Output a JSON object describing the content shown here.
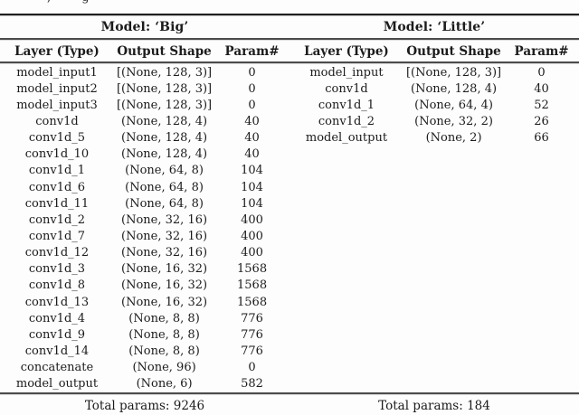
{
  "caption_fragment": ", g",
  "colors": {
    "background": "#fdfdfd",
    "text": "#1b1b1b",
    "rule_dark": "#1f1f1f",
    "rule_mid": "#4c4c4c"
  },
  "models": [
    {
      "title": "Model: ‘Big’",
      "columns": [
        "Layer (Type)",
        "Output Shape",
        "Param#"
      ],
      "rows": [
        [
          "model_input1",
          "[(None, 128, 3)]",
          "0"
        ],
        [
          "model_input2",
          "[(None, 128, 3)]",
          "0"
        ],
        [
          "model_input3",
          "[(None, 128, 3)]",
          "0"
        ],
        [
          "conv1d",
          "(None, 128, 4)",
          "40"
        ],
        [
          "conv1d_5",
          "(None, 128, 4)",
          "40"
        ],
        [
          "conv1d_10",
          "(None, 128, 4)",
          "40"
        ],
        [
          "conv1d_1",
          "(None, 64, 8)",
          "104"
        ],
        [
          "conv1d_6",
          "(None, 64, 8)",
          "104"
        ],
        [
          "conv1d_11",
          "(None, 64, 8)",
          "104"
        ],
        [
          "conv1d_2",
          "(None, 32, 16)",
          "400"
        ],
        [
          "conv1d_7",
          "(None, 32, 16)",
          "400"
        ],
        [
          "conv1d_12",
          "(None, 32, 16)",
          "400"
        ],
        [
          "conv1d_3",
          "(None, 16, 32)",
          "1568"
        ],
        [
          "conv1d_8",
          "(None, 16, 32)",
          "1568"
        ],
        [
          "conv1d_13",
          "(None, 16, 32)",
          "1568"
        ],
        [
          "conv1d_4",
          "(None, 8, 8)",
          "776"
        ],
        [
          "conv1d_9",
          "(None, 8, 8)",
          "776"
        ],
        [
          "conv1d_14",
          "(None, 8, 8)",
          "776"
        ],
        [
          "concatenate",
          "(None, 96)",
          "0"
        ],
        [
          "model_output",
          "(None, 6)",
          "582"
        ]
      ],
      "total": "Total params: 9246"
    },
    {
      "title": "Model: ‘Little’",
      "columns": [
        "Layer (Type)",
        "Output Shape",
        "Param#"
      ],
      "rows": [
        [
          "model_input",
          "[(None, 128, 3)]",
          "0"
        ],
        [
          "conv1d",
          "(None, 128, 4)",
          "40"
        ],
        [
          "conv1d_1",
          "(None, 64, 4)",
          "52"
        ],
        [
          "conv1d_2",
          "(None, 32, 2)",
          "26"
        ],
        [
          "model_output",
          "(None, 2)",
          "66"
        ]
      ],
      "total": "Total params: 184"
    }
  ]
}
